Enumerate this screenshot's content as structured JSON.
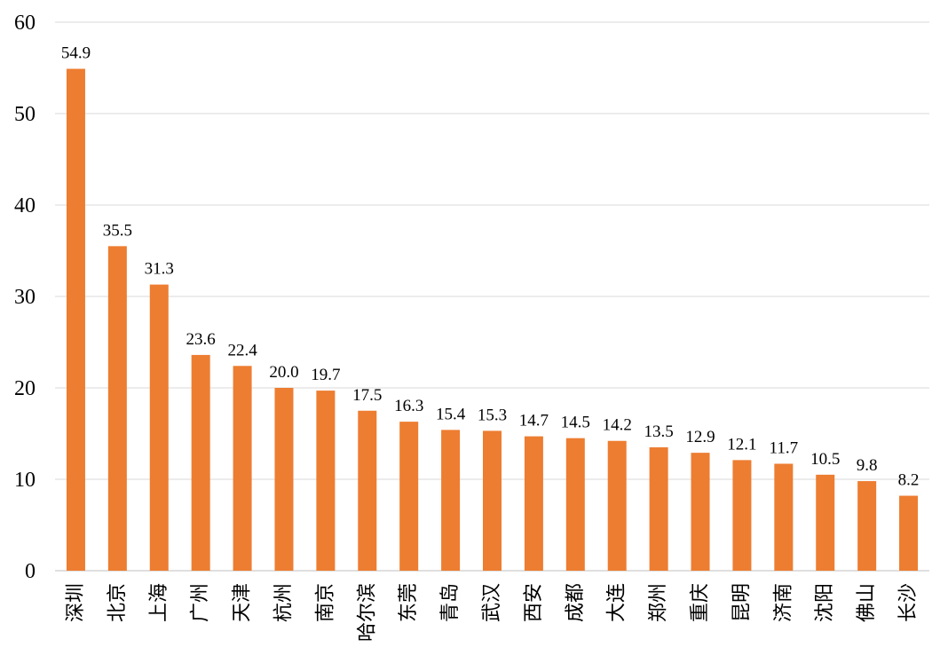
{
  "chart_data": {
    "type": "bar",
    "categories": [
      "深圳",
      "北京",
      "上海",
      "广州",
      "天津",
      "杭州",
      "南京",
      "哈尔滨",
      "东莞",
      "青岛",
      "武汉",
      "西安",
      "成都",
      "大连",
      "郑州",
      "重庆",
      "昆明",
      "济南",
      "沈阳",
      "佛山",
      "长沙"
    ],
    "values": [
      54.9,
      35.5,
      31.3,
      23.6,
      22.4,
      20.0,
      19.7,
      17.5,
      16.3,
      15.4,
      15.3,
      14.7,
      14.5,
      14.2,
      13.5,
      12.9,
      12.1,
      11.7,
      10.5,
      9.8,
      8.2
    ],
    "value_labels": [
      "54.9",
      "35.5",
      "31.3",
      "23.6",
      "22.4",
      "20.0",
      "19.7",
      "17.5",
      "16.3",
      "15.4",
      "15.3",
      "14.7",
      "14.5",
      "14.2",
      "13.5",
      "12.9",
      "12.1",
      "11.7",
      "10.5",
      "9.8",
      "8.2"
    ],
    "yticks": [
      "0",
      "10",
      "20",
      "30",
      "40",
      "50",
      "60"
    ],
    "ylim": [
      0,
      60
    ],
    "title": "",
    "xlabel": "",
    "ylabel": "",
    "grid": true,
    "legend": "none",
    "bar_color": "#ED7D31",
    "grid_color": "#D9D9D9"
  }
}
